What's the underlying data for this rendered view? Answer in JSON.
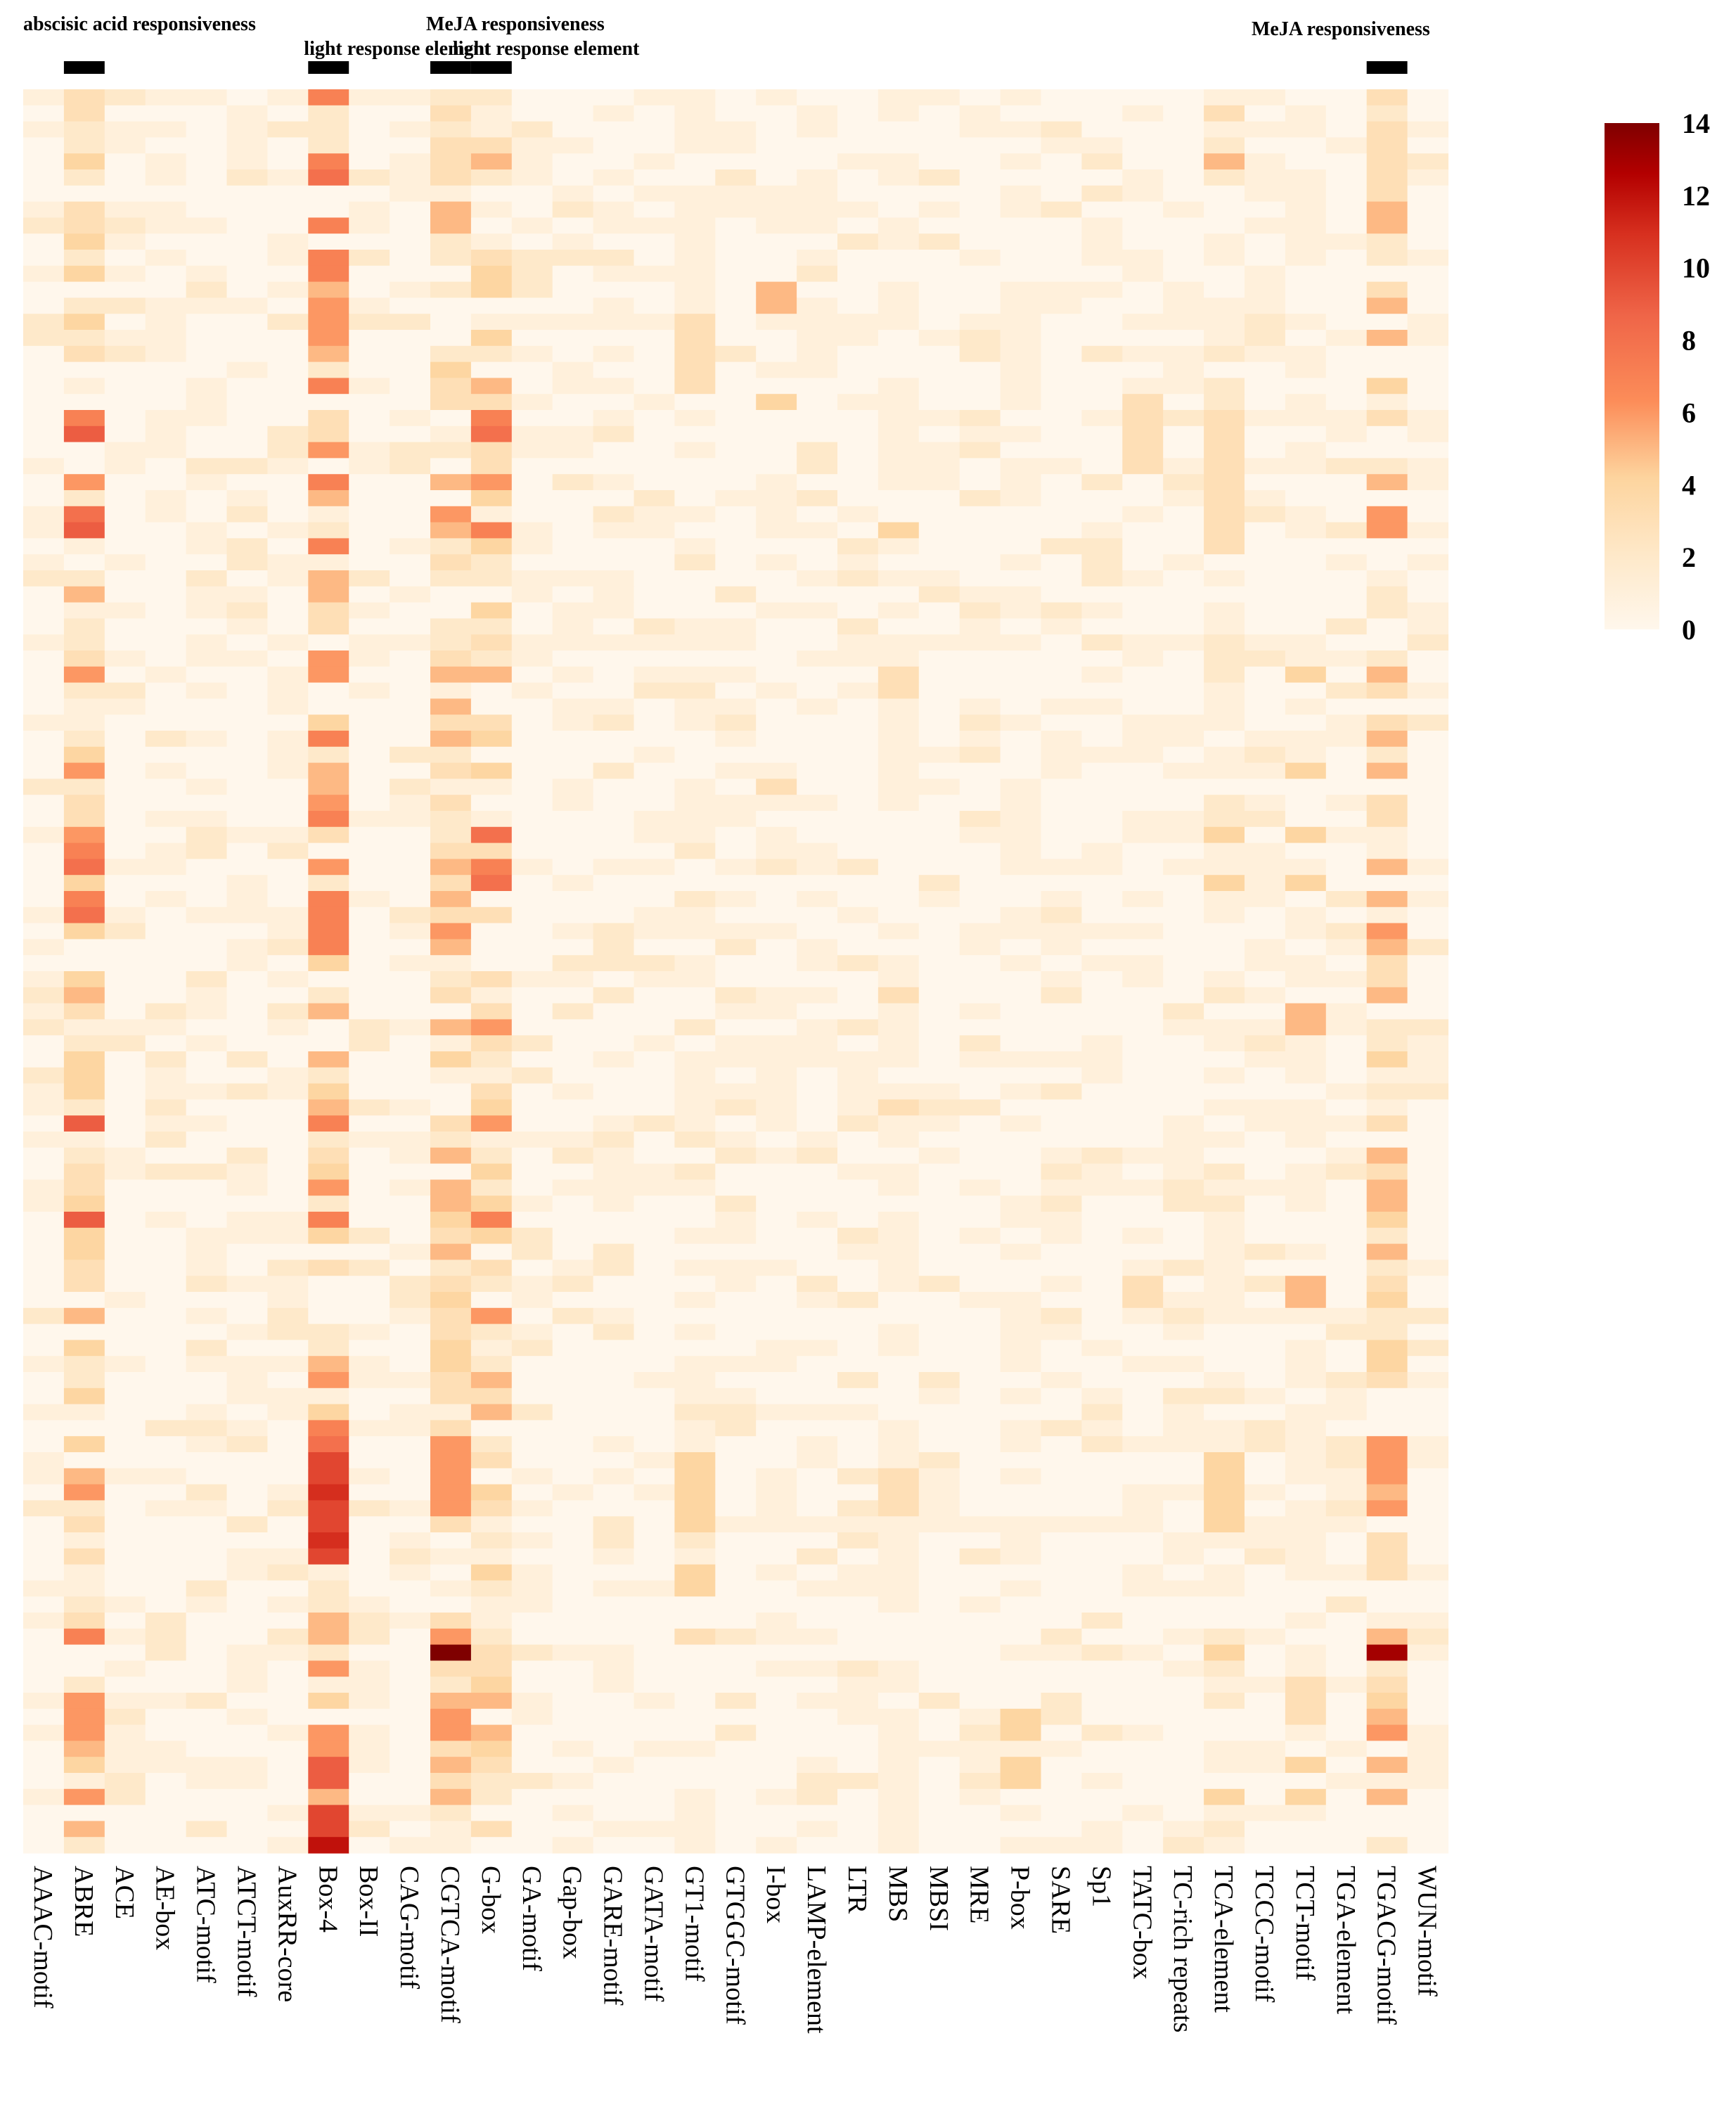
{
  "chart_data": {
    "type": "heatmap",
    "title": "",
    "xlabel": "",
    "ylabel": "",
    "x_categories": [
      "AAAC-motif",
      "ABRE",
      "ACE",
      "AE-box",
      "ATC-motif",
      "ATCT-motif",
      "AuxRR-core",
      "Box-4",
      "Box-II",
      "CAG-motif",
      "CGTCA-motif",
      "G-box",
      "GA-motif",
      "Gap-box",
      "GARE-motif",
      "GATA-motif",
      "GT1-motif",
      "GTGGC-motif",
      "I-box",
      "LAMP-element",
      "LTR",
      "MBS",
      "MBSI",
      "MRE",
      "P-box",
      "SARE",
      "Sp1",
      "TATC-box",
      "TC-rich repeats",
      "TCA-element",
      "TCCC-motif",
      "TCT-motif",
      "TGA-element",
      "TGACG-motif",
      "WUN-motif"
    ],
    "row_count": 110,
    "color_scale": {
      "min": 0,
      "max": 14,
      "ticks": [
        0,
        2,
        4,
        6,
        8,
        10,
        12,
        14
      ],
      "low_color": "#fff7ec",
      "mid_color": "#fc8d59",
      "high_color": "#7f0000"
    },
    "annotations": [
      {
        "text": "abscisic acid responsiveness",
        "column": "ABRE"
      },
      {
        "text": "light response element",
        "column": "Box-4"
      },
      {
        "text": "MeJA responsiveness",
        "column": "CGTCA-motif"
      },
      {
        "text": "light response element",
        "column": "G-box"
      },
      {
        "text": "MeJA responsiveness",
        "column": "TGACG-motif"
      }
    ],
    "columns": {
      "ABRE": {
        "mean": 3,
        "hot_rows": {
          "20": 7,
          "21": 9,
          "24": 6,
          "26": 8,
          "27": 9,
          "31": 5,
          "36": 6,
          "42": 6,
          "46": 6,
          "47": 7,
          "48": 8,
          "50": 7,
          "51": 8,
          "56": 5,
          "64": 9,
          "70": 9,
          "76": 5,
          "86": 5,
          "87": 6,
          "96": 7,
          "100": 6,
          "101": 6,
          "102": 6,
          "103": 5,
          "106": 6,
          "108": 5
        }
      },
      "Box-4": {
        "mean": 4,
        "hot_rows": {
          "0": 7,
          "4": 7,
          "5": 8,
          "8": 7,
          "10": 7,
          "11": 7,
          "14": 6,
          "15": 6,
          "16": 5,
          "18": 7,
          "22": 6,
          "24": 7,
          "28": 7,
          "35": 6,
          "36": 6,
          "40": 7,
          "44": 6,
          "45": 7,
          "48": 6,
          "50": 7,
          "51": 7,
          "52": 7,
          "53": 7,
          "60": 5,
          "64": 7,
          "70": 7,
          "80": 6,
          "83": 7,
          "84": 8,
          "85": 10,
          "86": 10,
          "87": 11,
          "88": 10,
          "89": 10,
          "90": 11,
          "91": 10,
          "98": 6,
          "102": 6,
          "103": 6,
          "104": 9,
          "105": 9,
          "107": 10,
          "108": 10,
          "109": 12
        }
      },
      "CGTCA-motif": {
        "mean": 2.5,
        "hot_rows": {
          "7": 5,
          "8": 5,
          "17": 4,
          "24": 5,
          "26": 6,
          "27": 5,
          "36": 5,
          "38": 5,
          "40": 5,
          "48": 5,
          "50": 5,
          "52": 6,
          "53": 5,
          "58": 5,
          "60": 4,
          "66": 5,
          "68": 5,
          "69": 5,
          "70": 4,
          "72": 5,
          "75": 4,
          "78": 4,
          "79": 4,
          "84": 6,
          "85": 6,
          "86": 6,
          "87": 6,
          "88": 6,
          "96": 6,
          "97": 14,
          "100": 5,
          "101": 6,
          "102": 6,
          "104": 5,
          "106": 5
        }
      },
      "G-box": {
        "mean": 3,
        "hot_rows": {
          "4": 5,
          "11": 4,
          "15": 4,
          "18": 5,
          "20": 7,
          "21": 8,
          "24": 6,
          "27": 7,
          "36": 5,
          "46": 8,
          "48": 7,
          "49": 8,
          "58": 6,
          "64": 6,
          "70": 7,
          "76": 6,
          "80": 5,
          "82": 5,
          "100": 5,
          "102": 5
        }
      },
      "TGACG-motif": {
        "mean": 2.5,
        "hot_rows": {
          "7": 5,
          "8": 5,
          "13": 5,
          "15": 5,
          "18": 4,
          "24": 5,
          "26": 6,
          "27": 6,
          "36": 5,
          "40": 5,
          "42": 5,
          "48": 5,
          "50": 5,
          "52": 6,
          "53": 5,
          "56": 5,
          "60": 4,
          "66": 5,
          "68": 5,
          "69": 5,
          "70": 4,
          "72": 5,
          "75": 4,
          "78": 4,
          "79": 4,
          "84": 6,
          "85": 6,
          "86": 6,
          "87": 5,
          "88": 6,
          "96": 5,
          "97": 13,
          "100": 4,
          "101": 5,
          "102": 6,
          "104": 5,
          "106": 5
        }
      },
      "TCA-element": {
        "mean": 1.3,
        "hot_rows": {
          "1": 3,
          "4": 5,
          "20": 3,
          "21": 3,
          "22": 3,
          "23": 3,
          "24": 3,
          "25": 3,
          "26": 3,
          "27": 3,
          "28": 3,
          "46": 4,
          "49": 4,
          "85": 4,
          "86": 4,
          "87": 4,
          "88": 4,
          "89": 4,
          "97": 4,
          "106": 4
        }
      },
      "TCT-motif": {
        "mean": 1,
        "hot_rows": {
          "36": 4,
          "42": 4,
          "46": 4,
          "49": 4,
          "57": 5,
          "58": 5,
          "74": 5,
          "75": 5,
          "99": 3,
          "100": 3,
          "101": 3,
          "104": 4,
          "106": 4
        }
      },
      "GT1-motif": {
        "mean": 1.2,
        "hot_rows": {
          "14": 3,
          "15": 3,
          "16": 3,
          "17": 3,
          "18": 3,
          "85": 4,
          "86": 4,
          "87": 4,
          "88": 4,
          "89": 4,
          "92": 4,
          "93": 4,
          "96": 3
        }
      },
      "I-box": {
        "mean": 0.6,
        "hot_rows": {
          "12": 5,
          "13": 5,
          "19": 4,
          "43": 3,
          "48": 2
        }
      },
      "MBS": {
        "mean": 1,
        "hot_rows": {
          "27": 4,
          "36": 3,
          "37": 3,
          "56": 3,
          "63": 3,
          "86": 3,
          "87": 3,
          "88": 3
        }
      },
      "TATC-box": {
        "mean": 0.5,
        "hot_rows": {
          "19": 3,
          "20": 3,
          "21": 3,
          "22": 3,
          "23": 3,
          "74": 3,
          "75": 3
        }
      },
      "P-box": {
        "mean": 0.7,
        "hot_rows": {
          "101": 4,
          "102": 4,
          "104": 4,
          "105": 4
        }
      }
    }
  }
}
